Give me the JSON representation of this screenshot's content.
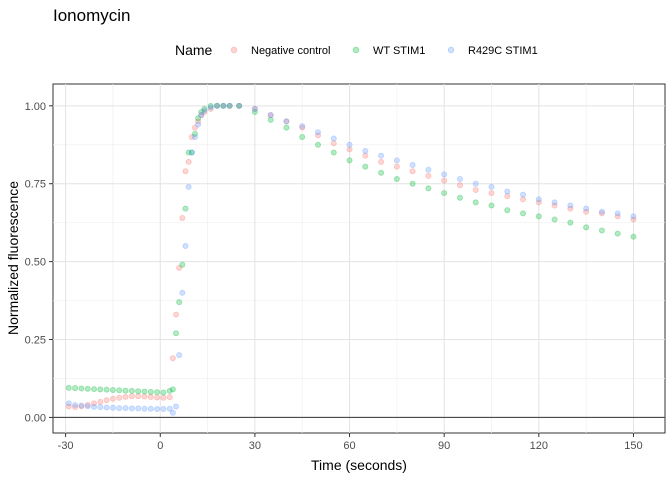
{
  "chart_data": {
    "type": "scatter",
    "title": "Ionomycin",
    "xlabel": "Time (seconds)",
    "ylabel": "Normalized fluorescence",
    "xlim": [
      -34,
      160
    ],
    "ylim": [
      -0.05,
      1.07
    ],
    "x_ticks": [
      -30,
      0,
      30,
      60,
      90,
      120,
      150
    ],
    "x_tick_labels": [
      "-30",
      "0",
      "30",
      "60",
      "90",
      "120",
      "150"
    ],
    "y_ticks": [
      0,
      0.25,
      0.5,
      0.75,
      1
    ],
    "y_tick_labels": [
      "0.00",
      "0.25",
      "0.50",
      "0.75",
      "1.00"
    ],
    "grid": true,
    "reference_line_y": 0,
    "legend": {
      "title": "Name",
      "position": "top",
      "entries": [
        "Negative control",
        "WT STIM1",
        "R429C STIM1"
      ]
    },
    "series": [
      {
        "name": "Negative control",
        "color": "#F8766D",
        "x": [
          -29,
          -27,
          -25,
          -23,
          -21,
          -19,
          -17,
          -15,
          -13,
          -11,
          -9,
          -7,
          -5,
          -3,
          -1,
          1,
          3,
          4,
          5,
          6,
          7,
          8,
          9,
          10,
          11,
          12,
          13,
          14,
          16,
          18,
          20,
          22,
          25,
          30,
          35,
          40,
          45,
          50,
          55,
          60,
          65,
          70,
          75,
          80,
          85,
          90,
          95,
          100,
          105,
          110,
          115,
          120,
          125,
          130,
          135,
          140,
          145,
          150
        ],
        "y": [
          0.035,
          0.033,
          0.036,
          0.04,
          0.045,
          0.05,
          0.055,
          0.06,
          0.063,
          0.066,
          0.068,
          0.068,
          0.067,
          0.066,
          0.064,
          0.063,
          0.065,
          0.19,
          0.33,
          0.48,
          0.64,
          0.79,
          0.82,
          0.9,
          0.93,
          0.95,
          0.97,
          0.98,
          0.99,
          1.0,
          1.0,
          1.0,
          1.0,
          0.99,
          0.97,
          0.95,
          0.93,
          0.905,
          0.88,
          0.86,
          0.84,
          0.82,
          0.805,
          0.79,
          0.775,
          0.76,
          0.745,
          0.73,
          0.72,
          0.71,
          0.7,
          0.69,
          0.68,
          0.67,
          0.66,
          0.655,
          0.645,
          0.635
        ]
      },
      {
        "name": "WT STIM1",
        "color": "#00BA38",
        "x": [
          -29,
          -27,
          -25,
          -23,
          -21,
          -19,
          -17,
          -15,
          -13,
          -11,
          -9,
          -7,
          -5,
          -3,
          -1,
          1,
          3,
          4,
          5,
          6,
          7,
          8,
          9,
          10,
          11,
          12,
          13,
          14,
          16,
          18,
          20,
          22,
          25,
          30,
          35,
          40,
          45,
          50,
          55,
          60,
          65,
          70,
          75,
          80,
          85,
          90,
          95,
          100,
          105,
          110,
          115,
          120,
          125,
          130,
          135,
          140,
          145,
          150
        ],
        "y": [
          0.095,
          0.094,
          0.093,
          0.092,
          0.091,
          0.09,
          0.089,
          0.088,
          0.087,
          0.086,
          0.085,
          0.084,
          0.083,
          0.082,
          0.081,
          0.08,
          0.085,
          0.09,
          0.27,
          0.37,
          0.49,
          0.67,
          0.85,
          0.85,
          0.91,
          0.96,
          0.98,
          0.99,
          1.0,
          1.0,
          1.0,
          1.0,
          1.0,
          0.98,
          0.955,
          0.93,
          0.9,
          0.875,
          0.85,
          0.825,
          0.805,
          0.785,
          0.765,
          0.75,
          0.735,
          0.72,
          0.705,
          0.69,
          0.68,
          0.665,
          0.655,
          0.645,
          0.635,
          0.625,
          0.61,
          0.6,
          0.59,
          0.58
        ]
      },
      {
        "name": "R429C STIM1",
        "color": "#619CFF",
        "x": [
          -29,
          -27,
          -25,
          -23,
          -21,
          -19,
          -17,
          -15,
          -13,
          -11,
          -9,
          -7,
          -5,
          -3,
          -1,
          1,
          3,
          4,
          5,
          6,
          7,
          8,
          9,
          10,
          11,
          12,
          13,
          14,
          16,
          18,
          20,
          22,
          25,
          30,
          35,
          40,
          45,
          50,
          55,
          60,
          65,
          70,
          75,
          80,
          85,
          90,
          95,
          100,
          105,
          110,
          115,
          120,
          125,
          130,
          135,
          140,
          145,
          150
        ],
        "y": [
          0.045,
          0.04,
          0.038,
          0.036,
          0.034,
          0.033,
          0.032,
          0.031,
          0.03,
          0.03,
          0.029,
          0.029,
          0.028,
          0.028,
          0.027,
          0.027,
          0.028,
          0.015,
          0.035,
          0.2,
          0.4,
          0.55,
          0.74,
          0.85,
          0.9,
          0.94,
          0.97,
          0.985,
          0.995,
          1.0,
          1.0,
          1.0,
          1.0,
          0.99,
          0.97,
          0.95,
          0.935,
          0.915,
          0.895,
          0.875,
          0.855,
          0.84,
          0.825,
          0.81,
          0.795,
          0.78,
          0.765,
          0.75,
          0.74,
          0.725,
          0.715,
          0.7,
          0.69,
          0.68,
          0.67,
          0.66,
          0.655,
          0.645
        ]
      }
    ]
  }
}
